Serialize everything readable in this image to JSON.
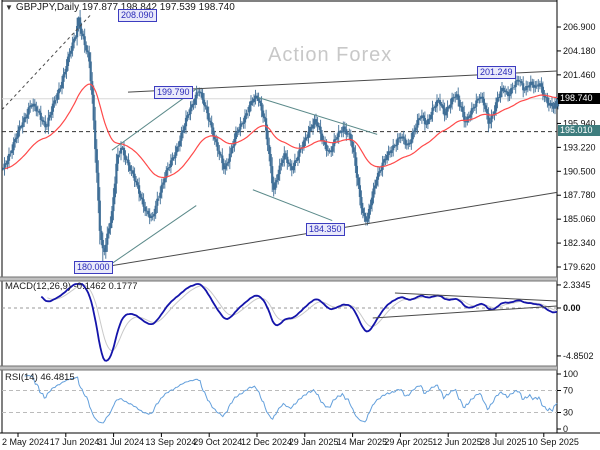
{
  "window": {
    "dropdown_icon": "▼",
    "title": "GBPJPY,Daily 197.877 198.842 197.539 198.740"
  },
  "watermark": "Action Forex",
  "panes": {
    "macd_label": "MACD(12,26,9) -0.1462 0.1777",
    "rsi_label": "RSI(14) 46.4815"
  },
  "chart_data": {
    "type": "candlestick",
    "symbol": "GBPJPY",
    "timeframe": "Daily",
    "title": "GBPJPY,Daily",
    "last_ohlc": {
      "open": 197.877,
      "high": 198.842,
      "low": 197.539,
      "close": 198.74
    },
    "bar_count": 368,
    "x_axis": {
      "labels": [
        "2 May 2024",
        "17 Jun 2024",
        "31 Jul 2024",
        "13 Sep 2024",
        "29 Oct 2024",
        "12 Dec 2024",
        "29 Jan 2025",
        "14 Mar 2025",
        "29 Apr 2025",
        "12 Jun 2025",
        "28 Jul 2025",
        "10 Sep 2025"
      ]
    },
    "y_axis_main": {
      "ticks": [
        206.9,
        204.18,
        201.46,
        198.74,
        195.94,
        193.22,
        190.5,
        187.78,
        185.06,
        182.34,
        179.62
      ],
      "range": [
        178.4,
        209.0
      ]
    },
    "y_axis_macd": {
      "ticks": [
        {
          "label": "2.3345",
          "value": 2.3345
        },
        {
          "label": "0.00",
          "value": 0.0
        },
        {
          "label": "-4.8502",
          "value": -4.8502
        }
      ],
      "range": [
        -5.9,
        2.6
      ]
    },
    "y_axis_rsi": {
      "ticks": [
        {
          "label": "100",
          "value": 100
        },
        {
          "label": "70",
          "value": 70
        },
        {
          "label": "30",
          "value": 30
        },
        {
          "label": "0",
          "value": 0
        }
      ],
      "guides": [
        70,
        30
      ],
      "range": [
        0,
        100
      ]
    },
    "price_levels": [
      {
        "label": "198.740",
        "value": 198.74,
        "type": "current-price"
      },
      {
        "label": "195.010",
        "value": 195.01,
        "type": "support-level-dashed"
      }
    ],
    "annotations": [
      {
        "label": "208.090",
        "price": 208.09
      },
      {
        "label": "199.790",
        "price": 199.79
      },
      {
        "label": "201.249",
        "price": 201.249
      },
      {
        "label": "184.350",
        "price": 184.35
      },
      {
        "label": "180.000",
        "price": 180.0
      }
    ],
    "trendlines_main": [
      {
        "style": "dashed",
        "color": "dark",
        "from": [
          0.0,
          197.5
        ],
        "to": [
          0.16,
          208.3
        ]
      },
      {
        "style": "solid",
        "color": "dark",
        "from": [
          0.227,
          199.5
        ],
        "to": [
          1.0,
          201.9
        ]
      },
      {
        "style": "solid",
        "color": "dark",
        "from": [
          0.191,
          179.7
        ],
        "to": [
          1.0,
          188.1
        ]
      },
      {
        "style": "solid",
        "color": "teal",
        "from": [
          0.198,
          192.9
        ],
        "to": [
          0.351,
          199.9
        ]
      },
      {
        "style": "solid",
        "color": "teal",
        "from": [
          0.186,
          179.5
        ],
        "to": [
          0.35,
          186.6
        ]
      },
      {
        "style": "solid",
        "color": "teal",
        "from": [
          0.461,
          198.9
        ],
        "to": [
          0.676,
          194.7
        ]
      },
      {
        "style": "solid",
        "color": "teal",
        "from": [
          0.452,
          188.4
        ],
        "to": [
          0.595,
          184.9
        ]
      }
    ],
    "trendlines_macd": [
      {
        "from": [
          0.708,
          1.52
        ],
        "to": [
          1.0,
          0.71
        ]
      },
      {
        "from": [
          0.668,
          -1.01
        ],
        "to": [
          1.0,
          0.2
        ]
      }
    ],
    "indicators": {
      "ma": {
        "type": "EMA",
        "period": 50,
        "color": "#ff4a4a"
      },
      "macd": {
        "fast": 12,
        "slow": 26,
        "signal": 9,
        "current_macd": -0.1462,
        "current_signal": 0.1777
      },
      "rsi": {
        "period": 14,
        "current": 46.4815
      }
    },
    "price_path": [
      [
        0.0,
        190.6
      ],
      [
        0.018,
        193.5
      ],
      [
        0.035,
        196.0
      ],
      [
        0.05,
        198.2
      ],
      [
        0.065,
        197.0
      ],
      [
        0.078,
        195.6
      ],
      [
        0.095,
        198.8
      ],
      [
        0.11,
        201.5
      ],
      [
        0.122,
        204.2
      ],
      [
        0.131,
        206.2
      ],
      [
        0.136,
        208.0
      ],
      [
        0.141,
        206.3
      ],
      [
        0.148,
        204.6
      ],
      [
        0.155,
        203.2
      ],
      [
        0.161,
        199.0
      ],
      [
        0.168,
        191.5
      ],
      [
        0.174,
        184.0
      ],
      [
        0.181,
        180.8
      ],
      [
        0.189,
        183.6
      ],
      [
        0.197,
        186.2
      ],
      [
        0.205,
        191.6
      ],
      [
        0.213,
        193.2
      ],
      [
        0.223,
        191.8
      ],
      [
        0.233,
        190.2
      ],
      [
        0.246,
        188.0
      ],
      [
        0.259,
        185.8
      ],
      [
        0.269,
        184.9
      ],
      [
        0.279,
        187.5
      ],
      [
        0.291,
        189.8
      ],
      [
        0.306,
        192.0
      ],
      [
        0.321,
        194.5
      ],
      [
        0.336,
        197.4
      ],
      [
        0.352,
        199.8
      ],
      [
        0.363,
        198.0
      ],
      [
        0.373,
        196.2
      ],
      [
        0.386,
        193.0
      ],
      [
        0.399,
        190.8
      ],
      [
        0.409,
        192.5
      ],
      [
        0.421,
        194.8
      ],
      [
        0.433,
        196.4
      ],
      [
        0.449,
        198.4
      ],
      [
        0.459,
        199.1
      ],
      [
        0.471,
        196.5
      ],
      [
        0.479,
        192.5
      ],
      [
        0.487,
        188.3
      ],
      [
        0.496,
        190.5
      ],
      [
        0.506,
        192.3
      ],
      [
        0.519,
        190.8
      ],
      [
        0.529,
        192.0
      ],
      [
        0.541,
        193.5
      ],
      [
        0.553,
        195.5
      ],
      [
        0.563,
        196.3
      ],
      [
        0.576,
        194.0
      ],
      [
        0.589,
        192.6
      ],
      [
        0.601,
        194.3
      ],
      [
        0.613,
        195.6
      ],
      [
        0.626,
        194.2
      ],
      [
        0.633,
        192.0
      ],
      [
        0.641,
        188.5
      ],
      [
        0.649,
        185.5
      ],
      [
        0.656,
        184.7
      ],
      [
        0.663,
        187.0
      ],
      [
        0.673,
        189.9
      ],
      [
        0.686,
        191.5
      ],
      [
        0.701,
        193.2
      ],
      [
        0.716,
        194.4
      ],
      [
        0.729,
        193.4
      ],
      [
        0.741,
        195.2
      ],
      [
        0.753,
        196.8
      ],
      [
        0.763,
        196.0
      ],
      [
        0.773,
        197.3
      ],
      [
        0.786,
        198.6
      ],
      [
        0.796,
        197.2
      ],
      [
        0.806,
        198.0
      ],
      [
        0.816,
        199.3
      ],
      [
        0.826,
        197.8
      ],
      [
        0.833,
        195.9
      ],
      [
        0.841,
        196.8
      ],
      [
        0.851,
        198.3
      ],
      [
        0.859,
        199.2
      ],
      [
        0.867,
        198.0
      ],
      [
        0.875,
        195.9
      ],
      [
        0.881,
        196.8
      ],
      [
        0.891,
        198.8
      ],
      [
        0.901,
        199.8
      ],
      [
        0.909,
        199.2
      ],
      [
        0.919,
        200.2
      ],
      [
        0.929,
        200.8
      ],
      [
        0.939,
        199.8
      ],
      [
        0.949,
        200.6
      ],
      [
        0.959,
        199.9
      ],
      [
        0.967,
        200.5
      ],
      [
        0.975,
        199.2
      ],
      [
        0.983,
        198.1
      ],
      [
        0.991,
        197.6
      ],
      [
        1.0,
        198.74
      ]
    ],
    "key_extremes": [
      {
        "f": 0.136,
        "high": 208.09
      },
      {
        "f": 0.181,
        "low": 180.0
      },
      {
        "f": 0.656,
        "low": 184.35
      },
      {
        "f": 0.875,
        "low": 194.95
      }
    ],
    "colors": {
      "candle": "#3f6e96",
      "ma": "#ff4a4a",
      "macd_main": "#1414aa",
      "macd_signal": "#c9c9c9",
      "rsi": "#64a0dc",
      "teal_line": "#5b8a8a",
      "dark_line": "#4a4a4a",
      "dashed_level": "#333333",
      "current_price_line": "#d8d8d8",
      "guide": "#bbbbbb",
      "separator": "#c0c0c0",
      "separator_edge": "#707070",
      "frame": "#000000",
      "watermark": "#c8c8c8",
      "label_text": "#2a2ab8",
      "label_bg": "#e9e9fa",
      "current_box_bg": "#000000",
      "level_box_bg": "#3e7d7e"
    }
  }
}
